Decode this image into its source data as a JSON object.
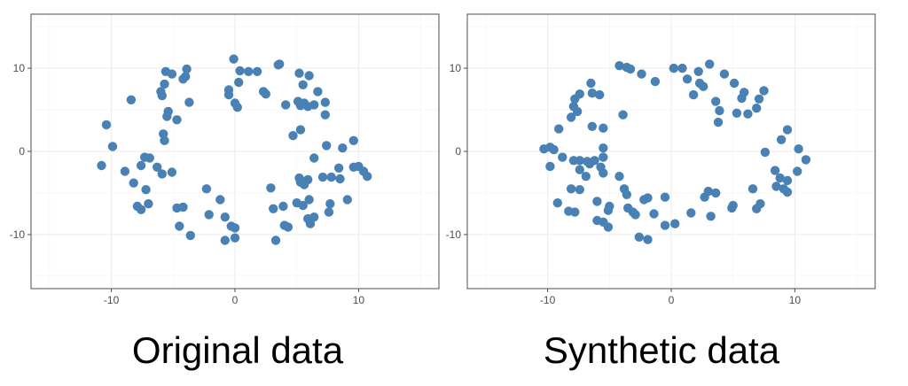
{
  "chart_data": [
    {
      "type": "scatter",
      "caption": "Original data",
      "point_color": "#4a81b5",
      "grid": true,
      "xlim": [
        -16.5,
        16.5
      ],
      "ylim": [
        -16.5,
        16.5
      ],
      "x_ticks": [
        -10,
        0,
        10
      ],
      "y_ticks": [
        10,
        0,
        -10
      ],
      "x_tick_labels": [
        "-10",
        "0",
        "10"
      ],
      "y_tick_labels": [
        "10",
        "0",
        "-10"
      ],
      "points": [
        [
          -10.4,
          3.2
        ],
        [
          -9.9,
          0.6
        ],
        [
          -10.8,
          -1.7
        ],
        [
          -8.4,
          6.2
        ],
        [
          -7.3,
          -0.7
        ],
        [
          -7.6,
          -1.7
        ],
        [
          -8.9,
          -2.4
        ],
        [
          -8.2,
          -3.8
        ],
        [
          -7.2,
          -4.6
        ],
        [
          -6.9,
          -0.8
        ],
        [
          -6.3,
          -1.9
        ],
        [
          -5.9,
          -2.7
        ],
        [
          -5.1,
          -2.5
        ],
        [
          -5.5,
          4.2
        ],
        [
          -5.4,
          4.8
        ],
        [
          -4.7,
          3.8
        ],
        [
          -3.7,
          5.9
        ],
        [
          -5.8,
          2.1
        ],
        [
          -5.7,
          1.3
        ],
        [
          -5.9,
          6.7
        ],
        [
          -6.0,
          7.2
        ],
        [
          -5.7,
          8.1
        ],
        [
          -5.6,
          9.6
        ],
        [
          -5.1,
          9.3
        ],
        [
          -4.2,
          8.7
        ],
        [
          -4.0,
          9.0
        ],
        [
          -3.9,
          9.9
        ],
        [
          -7.9,
          -6.6
        ],
        [
          -7.6,
          -7.0
        ],
        [
          -7.0,
          -6.3
        ],
        [
          -4.7,
          -6.8
        ],
        [
          -4.2,
          -6.7
        ],
        [
          -2.3,
          -4.5
        ],
        [
          -1.2,
          -5.8
        ],
        [
          -2.1,
          -7.6
        ],
        [
          -0.8,
          -7.9
        ],
        [
          -0.3,
          -9.0
        ],
        [
          0.0,
          -9.2
        ],
        [
          -4.5,
          -9.0
        ],
        [
          -3.6,
          -10.1
        ],
        [
          -0.8,
          -10.7
        ],
        [
          0.0,
          -10.4
        ],
        [
          -0.5,
          7.4
        ],
        [
          -0.5,
          6.8
        ],
        [
          0.0,
          5.8
        ],
        [
          0.2,
          5.3
        ],
        [
          0.3,
          8.3
        ],
        [
          0.4,
          9.7
        ],
        [
          -0.1,
          11.1
        ],
        [
          1.1,
          9.6
        ],
        [
          1.8,
          9.6
        ],
        [
          2.3,
          7.2
        ],
        [
          2.5,
          6.9
        ],
        [
          3.5,
          10.4
        ],
        [
          3.6,
          10.5
        ],
        [
          4.1,
          5.6
        ],
        [
          5.2,
          9.4
        ],
        [
          5.5,
          8.0
        ],
        [
          6.0,
          9.1
        ],
        [
          5.1,
          6.0
        ],
        [
          5.3,
          5.5
        ],
        [
          5.6,
          5.8
        ],
        [
          5.9,
          5.4
        ],
        [
          6.4,
          5.6
        ],
        [
          6.7,
          7.2
        ],
        [
          7.3,
          5.9
        ],
        [
          7.3,
          4.4
        ],
        [
          4.7,
          1.9
        ],
        [
          5.3,
          2.6
        ],
        [
          6.4,
          -0.8
        ],
        [
          7.4,
          0.7
        ],
        [
          8.7,
          0.4
        ],
        [
          9.6,
          1.3
        ],
        [
          7.1,
          -3.1
        ],
        [
          7.8,
          -3.1
        ],
        [
          8.4,
          -2.0
        ],
        [
          9.6,
          -1.9
        ],
        [
          10.0,
          -1.8
        ],
        [
          10.4,
          -2.4
        ],
        [
          10.7,
          -3.0
        ],
        [
          8.5,
          -3.3
        ],
        [
          9.1,
          -5.8
        ],
        [
          7.7,
          -6.3
        ],
        [
          7.6,
          -7.3
        ],
        [
          6.4,
          -7.9
        ],
        [
          6.1,
          -8.7
        ],
        [
          5.9,
          -8.1
        ],
        [
          6.0,
          -5.8
        ],
        [
          5.2,
          -3.2
        ],
        [
          5.3,
          -3.7
        ],
        [
          5.6,
          -4.0
        ],
        [
          5.5,
          -6.5
        ],
        [
          3.9,
          -6.6
        ],
        [
          3.1,
          -6.9
        ],
        [
          2.9,
          -4.4
        ],
        [
          4.0,
          -8.9
        ],
        [
          4.3,
          -9.1
        ],
        [
          3.3,
          -10.7
        ],
        [
          5.9,
          -3.4
        ],
        [
          5.0,
          -6.2
        ]
      ]
    },
    {
      "type": "scatter",
      "caption": "Synthetic data",
      "point_color": "#4a81b5",
      "grid": true,
      "xlim": [
        -16.5,
        16.5
      ],
      "ylim": [
        -16.5,
        16.5
      ],
      "x_ticks": [
        -10,
        0,
        10
      ],
      "y_ticks": [
        10,
        0,
        -10
      ],
      "x_tick_labels": [
        "-10",
        "0",
        "10"
      ],
      "y_tick_labels": [
        "10",
        "0",
        "-10"
      ],
      "points": [
        [
          -10.3,
          0.3
        ],
        [
          -9.8,
          0.5
        ],
        [
          -9.5,
          0.2
        ],
        [
          -9.8,
          -1.8
        ],
        [
          -9.1,
          2.7
        ],
        [
          -8.8,
          -0.7
        ],
        [
          -8.1,
          4.1
        ],
        [
          -7.8,
          6.3
        ],
        [
          -7.4,
          6.9
        ],
        [
          -7.9,
          5.4
        ],
        [
          -7.6,
          4.8
        ],
        [
          -6.5,
          8.2
        ],
        [
          -6.4,
          7.0
        ],
        [
          -6.4,
          3.0
        ],
        [
          -5.8,
          6.8
        ],
        [
          -5.5,
          2.8
        ],
        [
          -7.9,
          -1.1
        ],
        [
          -7.4,
          -1.1
        ],
        [
          -6.8,
          -1.2
        ],
        [
          -6.6,
          -1.5
        ],
        [
          -6.2,
          -1.1
        ],
        [
          -5.7,
          -1.9
        ],
        [
          -5.5,
          -2.6
        ],
        [
          -5.5,
          0.4
        ],
        [
          -5.5,
          -0.7
        ],
        [
          -7.4,
          -2.2
        ],
        [
          -8.1,
          -4.5
        ],
        [
          -7.4,
          -4.6
        ],
        [
          -6.9,
          -3.0
        ],
        [
          -9.2,
          -6.2
        ],
        [
          -8.3,
          -7.2
        ],
        [
          -7.8,
          -7.3
        ],
        [
          -6.0,
          -8.3
        ],
        [
          -5.5,
          -8.5
        ],
        [
          -5.1,
          -7.1
        ],
        [
          -5.0,
          -6.6
        ],
        [
          -5.1,
          -9.1
        ],
        [
          -4.2,
          -3.0
        ],
        [
          -3.8,
          -4.5
        ],
        [
          -3.6,
          -5.2
        ],
        [
          -3.5,
          -6.8
        ],
        [
          -3.1,
          -7.3
        ],
        [
          -2.9,
          -7.6
        ],
        [
          -3.9,
          4.4
        ],
        [
          -4.2,
          10.3
        ],
        [
          -3.6,
          10.1
        ],
        [
          -3.3,
          9.9
        ],
        [
          -2.4,
          9.3
        ],
        [
          -1.3,
          8.4
        ],
        [
          -1.9,
          -5.6
        ],
        [
          -1.4,
          -7.5
        ],
        [
          -0.5,
          -5.5
        ],
        [
          -0.5,
          -8.9
        ],
        [
          0.3,
          -8.7
        ],
        [
          -2.6,
          -10.3
        ],
        [
          -1.9,
          -10.6
        ],
        [
          0.2,
          10.0
        ],
        [
          0.9,
          10.0
        ],
        [
          1.3,
          8.7
        ],
        [
          1.8,
          6.8
        ],
        [
          2.2,
          9.6
        ],
        [
          2.3,
          8.2
        ],
        [
          2.6,
          7.8
        ],
        [
          3.1,
          10.5
        ],
        [
          3.6,
          6.0
        ],
        [
          3.9,
          4.9
        ],
        [
          3.8,
          3.5
        ],
        [
          4.3,
          9.3
        ],
        [
          5.1,
          8.2
        ],
        [
          5.7,
          6.4
        ],
        [
          5.9,
          7.1
        ],
        [
          5.3,
          4.6
        ],
        [
          6.2,
          4.5
        ],
        [
          6.9,
          5.2
        ],
        [
          7.1,
          6.3
        ],
        [
          7.5,
          7.3
        ],
        [
          7.6,
          -0.1
        ],
        [
          8.4,
          -2.3
        ],
        [
          8.8,
          -3.2
        ],
        [
          8.9,
          1.4
        ],
        [
          9.4,
          2.6
        ],
        [
          10.3,
          0.3
        ],
        [
          10.2,
          -2.4
        ],
        [
          10.9,
          -1.0
        ],
        [
          8.5,
          -4.2
        ],
        [
          9.4,
          -3.5
        ],
        [
          9.1,
          -4.5
        ],
        [
          9.4,
          -4.9
        ],
        [
          7.2,
          -6.3
        ],
        [
          6.9,
          -6.9
        ],
        [
          6.6,
          -4.5
        ],
        [
          4.9,
          -6.8
        ],
        [
          3.0,
          -4.8
        ],
        [
          3.6,
          -5.0
        ],
        [
          2.7,
          -5.5
        ],
        [
          1.6,
          -7.4
        ],
        [
          3.2,
          -7.8
        ],
        [
          -6.0,
          -6.0
        ],
        [
          -2.2,
          -5.8
        ],
        [
          5.0,
          -6.5
        ]
      ]
    }
  ]
}
